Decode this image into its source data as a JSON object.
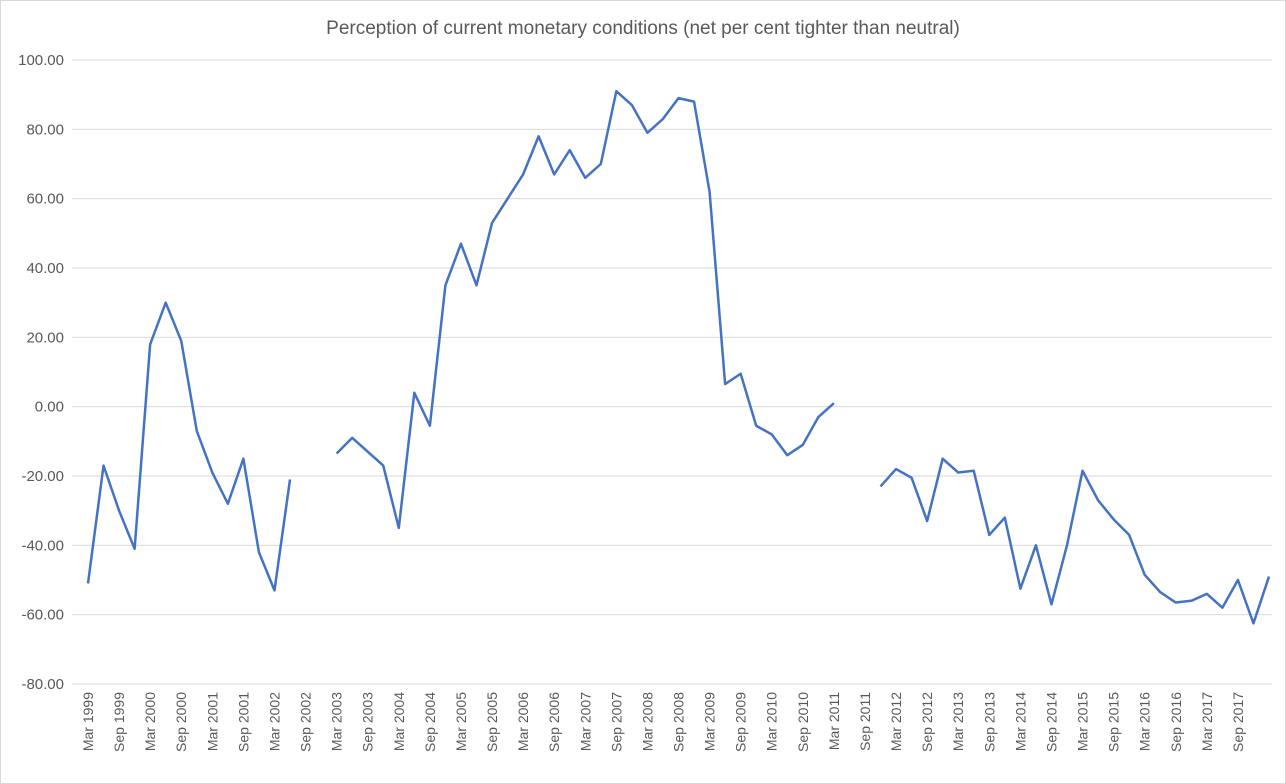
{
  "chart_data": {
    "type": "line",
    "title": "Perception of current monetary conditions (net per cent tighter than neutral)",
    "xlabel": "",
    "ylabel": "",
    "ylim": [
      -80,
      100
    ],
    "grid": true,
    "legend": "none",
    "line_color": "#4472c4",
    "grid_color": "#d9d9d9",
    "text_color": "#595959",
    "x_tick_labels": [
      "Mar 1999",
      "Sep 1999",
      "Mar 2000",
      "Sep 2000",
      "Mar 2001",
      "Sep 2001",
      "Mar 2002",
      "Sep 2002",
      "Mar 2003",
      "Sep 2003",
      "Mar 2004",
      "Sep 2004",
      "Mar 2005",
      "Sep 2005",
      "Mar 2006",
      "Sep 2006",
      "Mar 2007",
      "Sep 2007",
      "Mar 2008",
      "Sep 2008",
      "Mar 2009",
      "Sep 2009",
      "Mar 2010",
      "Sep 2010",
      "Mar 2011",
      "Sep 2011",
      "Mar 2012",
      "Sep 2012",
      "Mar 2013",
      "Sep 2013",
      "Mar 2014",
      "Sep 2014",
      "Mar 2015",
      "Sep 2015",
      "Mar 2016",
      "Sep 2016",
      "Mar 2017",
      "Sep 2017"
    ],
    "y_tick_labels": [
      "100.00",
      "80.00",
      "60.00",
      "40.00",
      "20.00",
      "0.00",
      "-20.00",
      "-40.00",
      "-60.00",
      "-80.00"
    ],
    "y_tick_values": [
      100,
      80,
      60,
      40,
      20,
      0,
      -20,
      -40,
      -60,
      -80
    ],
    "series": [
      {
        "name": "Net per cent tighter than neutral",
        "values": [
          -51,
          -17,
          -30,
          -41,
          18,
          30,
          19,
          -7,
          -19,
          -28,
          -15,
          -42,
          -53,
          -21,
          null,
          null,
          -13.5,
          -9,
          -13,
          -17,
          -35,
          4,
          -5.5,
          35,
          47,
          35,
          53,
          60,
          67,
          78,
          67,
          74,
          66,
          70,
          91,
          87,
          79,
          83,
          89,
          88,
          62,
          6.5,
          9.5,
          -5.5,
          -8,
          -14,
          -11,
          -3,
          1,
          null,
          null,
          -23,
          -18,
          -20.5,
          -33,
          -15,
          -19,
          -18.5,
          -37,
          -32,
          -52.5,
          -40,
          -57,
          -40,
          -18.5,
          -27,
          -32.5,
          -37,
          -48.5,
          -53.5,
          -56.5,
          -56,
          -54,
          -58,
          -50,
          -62.5,
          -49
        ]
      }
    ]
  }
}
